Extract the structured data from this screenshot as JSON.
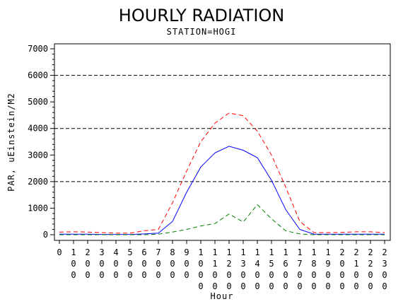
{
  "chart_data": {
    "type": "line",
    "title": "HOURLY RADIATION",
    "subtitle": "STATION=HOGI",
    "xlabel": "Hour",
    "ylabel": "PAR, uEinstein/M2",
    "x": [
      0,
      100,
      200,
      300,
      400,
      500,
      600,
      700,
      800,
      900,
      1000,
      1100,
      1200,
      1300,
      1400,
      1500,
      1600,
      1700,
      1800,
      1900,
      2000,
      2100,
      2200,
      2300
    ],
    "x_tick_labels": [
      "0",
      "100",
      "200",
      "300",
      "400",
      "500",
      "600",
      "700",
      "800",
      "900",
      "1000",
      "1100",
      "1200",
      "1300",
      "1400",
      "1500",
      "1600",
      "1700",
      "1800",
      "1900",
      "2000",
      "2100",
      "2200",
      "2300"
    ],
    "y_ticks": [
      0,
      1000,
      2000,
      3000,
      4000,
      5000,
      6000,
      7000
    ],
    "ylim": [
      0,
      7000
    ],
    "reference_lines": [
      2000,
      4000,
      6000
    ],
    "series": [
      {
        "color": "#ff0000",
        "dash": "dashed",
        "values": [
          100,
          110,
          100,
          80,
          60,
          60,
          150,
          200,
          1200,
          2400,
          3500,
          4200,
          4580,
          4480,
          3900,
          3000,
          1800,
          500,
          80,
          80,
          90,
          110,
          110,
          80
        ]
      },
      {
        "color": "#0000ff",
        "dash": "solid",
        "values": [
          20,
          20,
          20,
          10,
          10,
          10,
          30,
          60,
          500,
          1600,
          2550,
          3080,
          3330,
          3180,
          2900,
          2050,
          950,
          200,
          20,
          20,
          20,
          20,
          20,
          20
        ]
      },
      {
        "color": "#008000",
        "dash": "dashed",
        "values": [
          0,
          0,
          0,
          0,
          0,
          0,
          0,
          20,
          100,
          200,
          330,
          420,
          780,
          480,
          1130,
          600,
          150,
          30,
          0,
          0,
          0,
          0,
          0,
          0
        ]
      }
    ],
    "grid": false
  }
}
